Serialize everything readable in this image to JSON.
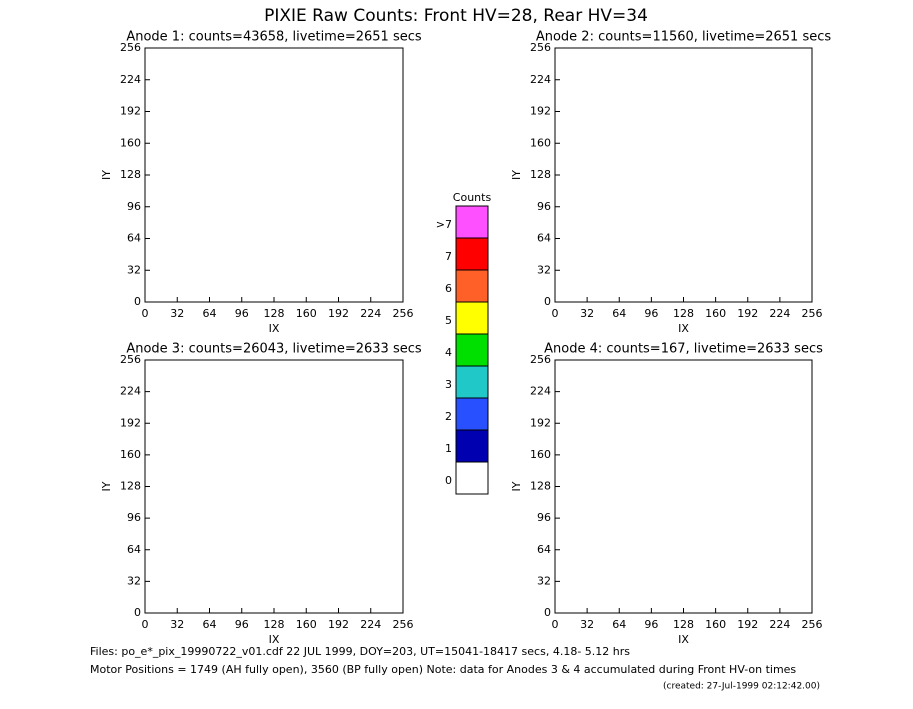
{
  "title": "PIXIE Raw Counts:  Front HV=28, Rear HV=34",
  "chart_data": [
    {
      "type": "heatmap",
      "title": "Anode 1: counts=43658, livetime=2651 secs",
      "xlabel": "IX",
      "ylabel": "IY",
      "xlim": [
        0,
        256
      ],
      "ylim": [
        0,
        256
      ],
      "xticks": [
        0,
        32,
        64,
        96,
        128,
        160,
        192,
        224,
        256
      ],
      "yticks": [
        0,
        32,
        64,
        96,
        128,
        160,
        192,
        224,
        256
      ]
    },
    {
      "type": "heatmap",
      "title": "Anode 2: counts=11560, livetime=2651 secs",
      "xlabel": "IX",
      "ylabel": "IY",
      "xlim": [
        0,
        256
      ],
      "ylim": [
        0,
        256
      ],
      "xticks": [
        0,
        32,
        64,
        96,
        128,
        160,
        192,
        224,
        256
      ],
      "yticks": [
        0,
        32,
        64,
        96,
        128,
        160,
        192,
        224,
        256
      ]
    },
    {
      "type": "heatmap",
      "title": "Anode 3: counts=26043, livetime=2633 secs",
      "xlabel": "IX",
      "ylabel": "IY",
      "xlim": [
        0,
        256
      ],
      "ylim": [
        0,
        256
      ],
      "xticks": [
        0,
        32,
        64,
        96,
        128,
        160,
        192,
        224,
        256
      ],
      "yticks": [
        0,
        32,
        64,
        96,
        128,
        160,
        192,
        224,
        256
      ]
    },
    {
      "type": "heatmap",
      "title": "Anode 4: counts=167, livetime=2633 secs",
      "xlabel": "IX",
      "ylabel": "IY",
      "xlim": [
        0,
        256
      ],
      "ylim": [
        0,
        256
      ],
      "xticks": [
        0,
        32,
        64,
        96,
        128,
        160,
        192,
        224,
        256
      ],
      "yticks": [
        0,
        32,
        64,
        96,
        128,
        160,
        192,
        224,
        256
      ]
    }
  ],
  "colorbar": {
    "title": "Counts",
    "levels": [
      {
        "label": "0",
        "color": "#ffffff"
      },
      {
        "label": "1",
        "color": "#0000b0"
      },
      {
        "label": "2",
        "color": "#2850ff"
      },
      {
        "label": "3",
        "color": "#20c8c8"
      },
      {
        "label": "4",
        "color": "#00e000"
      },
      {
        "label": "5",
        "color": "#ffff00"
      },
      {
        "label": "6",
        "color": "#ff6028"
      },
      {
        "label": "7",
        "color": "#ff0000"
      },
      {
        "label": ">7",
        "color": "#ff50ff"
      }
    ]
  },
  "footer": [
    "Files: po_e*_pix_19990722_v01.cdf    22 JUL 1999, DOY=203, UT=15041-18417 secs,  4.18- 5.12 hrs",
    "Motor Positions = 1749 (AH fully open), 3560 (BP fully open)    Note: data for Anodes 3 & 4 accumulated during Front HV-on times",
    "(created: 27-Jul-1999 02:12:42.00)"
  ]
}
